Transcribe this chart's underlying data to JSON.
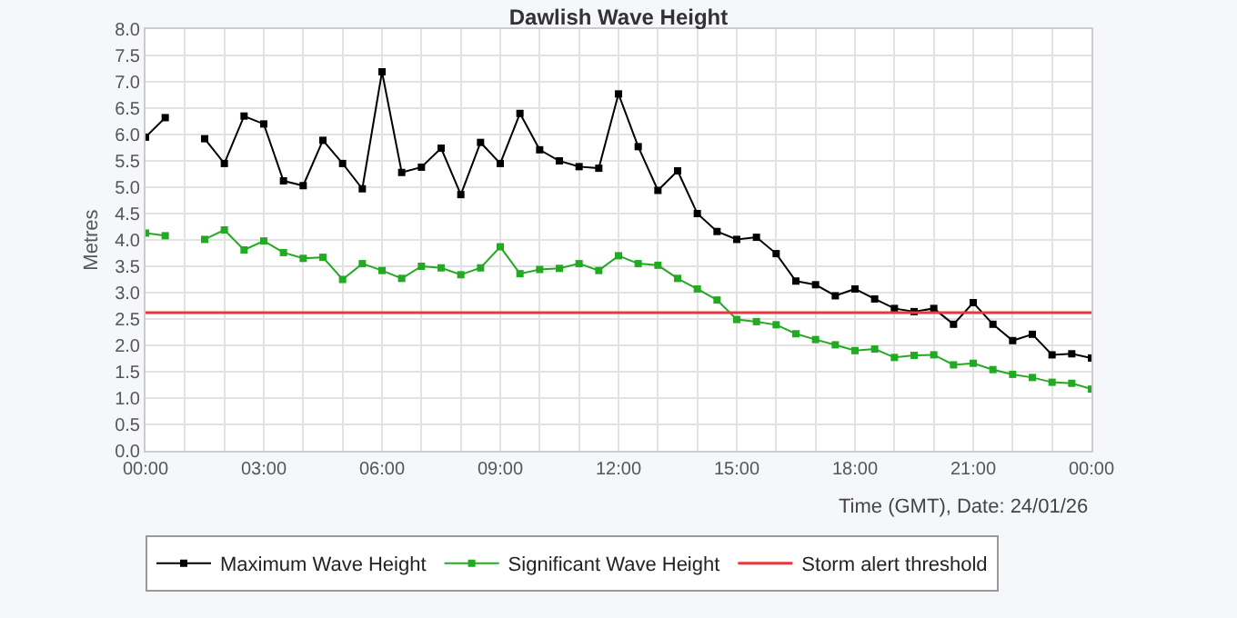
{
  "chart_data": {
    "type": "line",
    "title": "Dawlish Wave Height",
    "xlabel": "Time (GMT), Date: 24/01/26",
    "ylabel": "Metres",
    "x": [
      0,
      0.5,
      1,
      1.5,
      2,
      2.5,
      3,
      3.5,
      4,
      4.5,
      5,
      5.5,
      6,
      6.5,
      7,
      7.5,
      8,
      8.5,
      9,
      9.5,
      10,
      10.5,
      11,
      11.5,
      12,
      12.5,
      13,
      13.5,
      14,
      14.5,
      15,
      15.5,
      16,
      16.5,
      17,
      17.5,
      18,
      18.5,
      19,
      19.5,
      20,
      20.5,
      21,
      21.5,
      22,
      22.5,
      23,
      23.5,
      24
    ],
    "series": [
      {
        "name": "Maximum Wave Height",
        "color": "#000000",
        "values": [
          5.95,
          6.32,
          null,
          5.92,
          5.45,
          6.35,
          6.2,
          5.12,
          5.03,
          5.89,
          5.45,
          4.97,
          7.19,
          5.28,
          5.38,
          5.74,
          4.86,
          5.85,
          5.45,
          6.4,
          5.71,
          5.5,
          5.39,
          5.36,
          6.77,
          5.77,
          4.94,
          5.31,
          4.5,
          4.16,
          4.01,
          4.05,
          3.74,
          3.22,
          3.15,
          2.94,
          3.07,
          2.88,
          2.7,
          2.64,
          2.7,
          2.4,
          2.81,
          2.4,
          2.09,
          2.21,
          1.82,
          1.84,
          1.76
        ]
      },
      {
        "name": "Significant Wave Height",
        "color": "#22aa22",
        "values": [
          4.13,
          4.08,
          null,
          4.01,
          4.19,
          3.81,
          3.98,
          3.76,
          3.65,
          3.67,
          3.25,
          3.55,
          3.42,
          3.27,
          3.5,
          3.47,
          3.34,
          3.47,
          3.87,
          3.36,
          3.44,
          3.46,
          3.55,
          3.42,
          3.7,
          3.55,
          3.52,
          3.27,
          3.07,
          2.86,
          2.49,
          2.45,
          2.39,
          2.22,
          2.11,
          2.01,
          1.9,
          1.93,
          1.77,
          1.81,
          1.82,
          1.63,
          1.66,
          1.54,
          1.45,
          1.39,
          1.3,
          1.28,
          1.17
        ]
      }
    ],
    "ref_lines": [
      {
        "axis": "y",
        "value": 2.62,
        "label": "Storm alert threshold",
        "color": "#e8383d"
      }
    ],
    "xlim": [
      0,
      24
    ],
    "xticks": [
      {
        "value": 0,
        "label": "00:00"
      },
      {
        "value": 1,
        "label": null
      },
      {
        "value": 2,
        "label": null
      },
      {
        "value": 3,
        "label": "03:00"
      },
      {
        "value": 4,
        "label": null
      },
      {
        "value": 5,
        "label": null
      },
      {
        "value": 6,
        "label": "06:00"
      },
      {
        "value": 7,
        "label": null
      },
      {
        "value": 8,
        "label": null
      },
      {
        "value": 9,
        "label": "09:00"
      },
      {
        "value": 10,
        "label": null
      },
      {
        "value": 11,
        "label": null
      },
      {
        "value": 12,
        "label": "12:00"
      },
      {
        "value": 13,
        "label": null
      },
      {
        "value": 14,
        "label": null
      },
      {
        "value": 15,
        "label": "15:00"
      },
      {
        "value": 16,
        "label": null
      },
      {
        "value": 17,
        "label": null
      },
      {
        "value": 18,
        "label": "18:00"
      },
      {
        "value": 19,
        "label": null
      },
      {
        "value": 20,
        "label": null
      },
      {
        "value": 21,
        "label": "21:00"
      },
      {
        "value": 22,
        "label": null
      },
      {
        "value": 23,
        "label": null
      },
      {
        "value": 24,
        "label": "00:00"
      }
    ],
    "ylim": [
      0,
      8
    ],
    "yticks": [
      {
        "value": 0,
        "label": "0.0"
      },
      {
        "value": 0.5,
        "label": "0.5"
      },
      {
        "value": 1,
        "label": "1.0"
      },
      {
        "value": 1.5,
        "label": "1.5"
      },
      {
        "value": 2,
        "label": "2.0"
      },
      {
        "value": 2.5,
        "label": "2.5"
      },
      {
        "value": 3,
        "label": "3.0"
      },
      {
        "value": 3.5,
        "label": "3.5"
      },
      {
        "value": 4,
        "label": "4.0"
      },
      {
        "value": 4.5,
        "label": "4.5"
      },
      {
        "value": 5,
        "label": "5.0"
      },
      {
        "value": 5.5,
        "label": "5.5"
      },
      {
        "value": 6,
        "label": "6.0"
      },
      {
        "value": 6.5,
        "label": "6.5"
      },
      {
        "value": 7,
        "label": "7.0"
      },
      {
        "value": 7.5,
        "label": "7.5"
      },
      {
        "value": 8,
        "label": "8.0"
      }
    ],
    "grid": true,
    "legend": "bottom",
    "marker": "square",
    "line_style": "solid"
  }
}
